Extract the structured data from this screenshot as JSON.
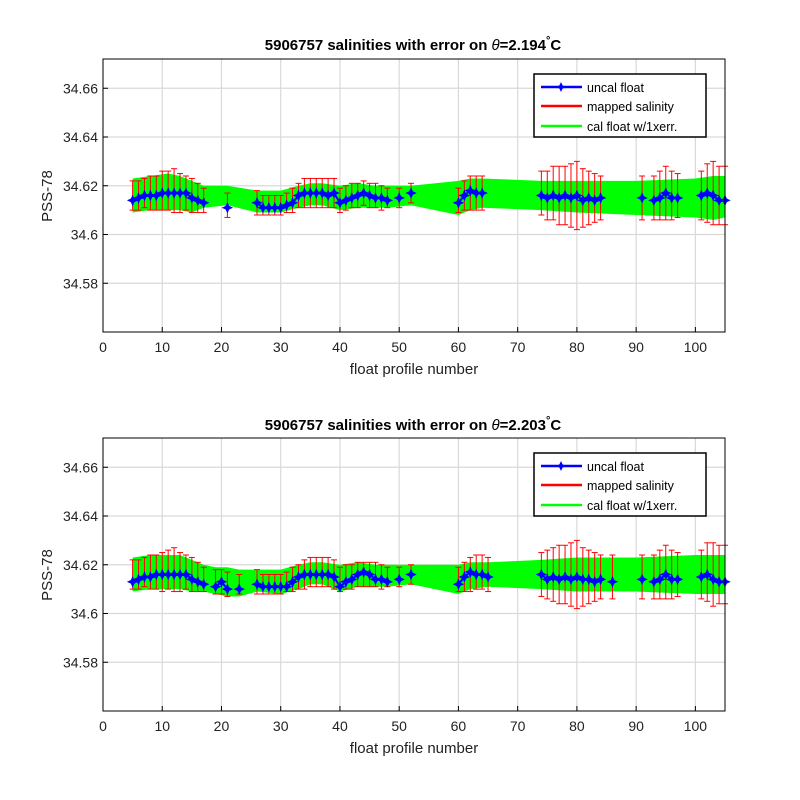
{
  "chart_data": [
    {
      "type": "line",
      "title_prefix": "5906757 salinities with error on ",
      "theta_symbol": "θ",
      "theta_value": "=2.194",
      "degree_mark": "°",
      "unit": "C",
      "xlabel": "float profile number",
      "ylabel": "PSS-78",
      "xlim": [
        0,
        105
      ],
      "ylim": [
        34.56,
        34.672
      ],
      "xticks": [
        0,
        10,
        20,
        30,
        40,
        50,
        60,
        70,
        80,
        90,
        100
      ],
      "yticks": [
        34.58,
        34.6,
        34.62,
        34.64,
        34.66
      ],
      "ytick_labels": [
        "34.58",
        "34.6",
        "34.62",
        "34.64",
        "34.66"
      ],
      "grid": true,
      "legend_position": "top-right",
      "legend": [
        {
          "label": "uncal float",
          "color": "#0000ff"
        },
        {
          "label": "mapped salinity",
          "color": "#ff0000"
        },
        {
          "label": "cal float w/1xerr.",
          "color": "#00ff00"
        }
      ],
      "series": [
        {
          "name": "uncal float",
          "x": [
            5,
            6,
            7,
            8,
            9,
            10,
            11,
            12,
            13,
            14,
            15,
            16,
            17,
            21,
            26,
            27,
            28,
            29,
            30,
            31,
            32,
            33,
            34,
            35,
            36,
            37,
            38,
            39,
            40,
            41,
            42,
            43,
            44,
            45,
            46,
            47,
            48,
            50,
            52,
            60,
            61,
            62,
            63,
            64,
            74,
            75,
            76,
            77,
            78,
            79,
            80,
            81,
            82,
            83,
            84,
            91,
            93,
            94,
            95,
            96,
            97,
            101,
            102,
            103,
            104,
            105
          ],
          "y": [
            34.614,
            34.615,
            34.616,
            34.616,
            34.616,
            34.617,
            34.617,
            34.617,
            34.617,
            34.617,
            34.615,
            34.614,
            34.613,
            34.611,
            34.613,
            34.611,
            34.611,
            34.611,
            34.611,
            34.612,
            34.613,
            34.616,
            34.617,
            34.617,
            34.617,
            34.617,
            34.616,
            34.617,
            34.613,
            34.614,
            34.615,
            34.616,
            34.617,
            34.616,
            34.615,
            34.615,
            34.614,
            34.615,
            34.617,
            34.613,
            34.616,
            34.618,
            34.617,
            34.617,
            34.616,
            34.615,
            34.616,
            34.615,
            34.616,
            34.615,
            34.616,
            34.614,
            34.615,
            34.614,
            34.615,
            34.615,
            34.614,
            34.615,
            34.617,
            34.615,
            34.615,
            34.616,
            34.617,
            34.616,
            34.614,
            34.614
          ]
        }
      ],
      "mapped_salinity": {
        "name": "mapped salinity",
        "x": [
          5,
          6,
          7,
          8,
          9,
          10,
          11,
          12,
          13,
          14,
          15,
          16,
          17,
          21,
          26,
          27,
          28,
          29,
          30,
          31,
          32,
          33,
          34,
          35,
          36,
          37,
          38,
          39,
          40,
          41,
          42,
          43,
          44,
          45,
          46,
          47,
          48,
          50,
          52,
          60,
          61,
          62,
          63,
          64,
          74,
          75,
          76,
          77,
          78,
          79,
          80,
          81,
          82,
          83,
          84,
          91,
          93,
          94,
          95,
          96,
          97,
          101,
          102,
          103,
          104,
          105
        ],
        "y": [
          34.616,
          34.616,
          34.617,
          34.617,
          34.617,
          34.618,
          34.618,
          34.618,
          34.617,
          34.617,
          34.616,
          34.615,
          34.614,
          34.612,
          34.613,
          34.612,
          34.612,
          34.612,
          34.612,
          34.613,
          34.614,
          34.616,
          34.617,
          34.617,
          34.617,
          34.617,
          34.617,
          34.617,
          34.614,
          34.615,
          34.616,
          34.616,
          34.617,
          34.616,
          34.616,
          34.615,
          34.615,
          34.615,
          34.617,
          34.614,
          34.616,
          34.617,
          34.617,
          34.617,
          34.617,
          34.616,
          34.617,
          34.616,
          34.616,
          34.616,
          34.616,
          34.615,
          34.615,
          34.615,
          34.615,
          34.615,
          34.615,
          34.616,
          34.617,
          34.616,
          34.616,
          34.616,
          34.617,
          34.617,
          34.616,
          34.616
        ],
        "error": [
          0.006,
          0.006,
          0.006,
          0.007,
          0.007,
          0.008,
          0.008,
          0.009,
          0.008,
          0.007,
          0.007,
          0.006,
          0.005,
          0.005,
          0.005,
          0.004,
          0.004,
          0.004,
          0.004,
          0.004,
          0.005,
          0.005,
          0.006,
          0.006,
          0.006,
          0.006,
          0.006,
          0.006,
          0.005,
          0.005,
          0.005,
          0.005,
          0.005,
          0.005,
          0.005,
          0.005,
          0.004,
          0.004,
          0.004,
          0.005,
          0.006,
          0.007,
          0.007,
          0.007,
          0.009,
          0.01,
          0.011,
          0.012,
          0.012,
          0.013,
          0.014,
          0.012,
          0.011,
          0.01,
          0.009,
          0.009,
          0.009,
          0.01,
          0.011,
          0.01,
          0.009,
          0.01,
          0.012,
          0.013,
          0.012,
          0.012
        ]
      },
      "cal_float_band": {
        "name": "cal float w/1xerr.",
        "x": [
          5,
          8,
          11,
          13,
          15,
          17,
          21,
          26,
          30,
          33,
          35,
          37,
          40,
          43,
          46,
          48,
          52,
          60,
          62,
          64,
          74,
          80,
          90,
          100,
          103,
          105
        ],
        "lower": [
          34.609,
          34.61,
          34.61,
          34.61,
          34.609,
          34.611,
          34.612,
          34.609,
          34.609,
          34.611,
          34.612,
          34.612,
          34.61,
          34.611,
          34.611,
          34.611,
          34.612,
          34.608,
          34.61,
          34.611,
          34.61,
          34.609,
          34.608,
          34.607,
          34.606,
          34.607
        ],
        "upper": [
          34.623,
          34.624,
          34.625,
          34.624,
          34.622,
          34.62,
          34.62,
          34.618,
          34.618,
          34.62,
          34.621,
          34.621,
          34.62,
          34.621,
          34.62,
          34.62,
          34.62,
          34.622,
          34.623,
          34.623,
          34.622,
          34.622,
          34.622,
          34.623,
          34.624,
          34.624
        ]
      }
    },
    {
      "type": "line",
      "title_prefix": "5906757 salinities with error on ",
      "theta_symbol": "θ",
      "theta_value": "=2.203",
      "degree_mark": "°",
      "unit": "C",
      "xlabel": "float profile number",
      "ylabel": "PSS-78",
      "xlim": [
        0,
        105
      ],
      "ylim": [
        34.56,
        34.672
      ],
      "xticks": [
        0,
        10,
        20,
        30,
        40,
        50,
        60,
        70,
        80,
        90,
        100
      ],
      "yticks": [
        34.58,
        34.6,
        34.62,
        34.64,
        34.66
      ],
      "ytick_labels": [
        "34.58",
        "34.6",
        "34.62",
        "34.64",
        "34.66"
      ],
      "grid": true,
      "legend_position": "top-right",
      "legend": [
        {
          "label": "uncal float",
          "color": "#0000ff"
        },
        {
          "label": "mapped salinity",
          "color": "#ff0000"
        },
        {
          "label": "cal float w/1xerr.",
          "color": "#00ff00"
        }
      ],
      "series": [
        {
          "name": "uncal float",
          "x": [
            5,
            6,
            7,
            8,
            9,
            10,
            11,
            12,
            13,
            14,
            15,
            16,
            17,
            19,
            20,
            21,
            23,
            26,
            27,
            28,
            29,
            30,
            31,
            32,
            33,
            34,
            35,
            36,
            37,
            38,
            39,
            40,
            41,
            42,
            43,
            44,
            45,
            46,
            47,
            48,
            50,
            52,
            60,
            61,
            62,
            63,
            64,
            65,
            74,
            75,
            76,
            77,
            78,
            79,
            80,
            81,
            82,
            83,
            84,
            86,
            91,
            93,
            94,
            95,
            96,
            97,
            101,
            102,
            103,
            104,
            105
          ],
          "y": [
            34.613,
            34.614,
            34.615,
            34.615,
            34.616,
            34.616,
            34.616,
            34.616,
            34.616,
            34.616,
            34.614,
            34.613,
            34.612,
            34.611,
            34.613,
            34.61,
            34.61,
            34.612,
            34.611,
            34.611,
            34.611,
            34.611,
            34.611,
            34.613,
            34.615,
            34.616,
            34.616,
            34.616,
            34.616,
            34.616,
            34.615,
            34.611,
            34.613,
            34.614,
            34.616,
            34.617,
            34.616,
            34.614,
            34.614,
            34.613,
            34.614,
            34.616,
            34.612,
            34.615,
            34.617,
            34.616,
            34.616,
            34.615,
            34.616,
            34.614,
            34.615,
            34.614,
            34.615,
            34.614,
            34.615,
            34.614,
            34.614,
            34.613,
            34.614,
            34.613,
            34.614,
            34.613,
            34.614,
            34.616,
            34.614,
            34.614,
            34.615,
            34.616,
            34.614,
            34.613,
            34.613
          ]
        }
      ],
      "mapped_salinity": {
        "name": "mapped salinity",
        "x": [
          5,
          6,
          7,
          8,
          9,
          10,
          11,
          12,
          13,
          14,
          15,
          16,
          17,
          19,
          20,
          21,
          23,
          26,
          27,
          28,
          29,
          30,
          31,
          32,
          33,
          34,
          35,
          36,
          37,
          38,
          39,
          40,
          41,
          42,
          43,
          44,
          45,
          46,
          47,
          48,
          50,
          52,
          60,
          61,
          62,
          63,
          64,
          65,
          74,
          75,
          76,
          77,
          78,
          79,
          80,
          81,
          82,
          83,
          84,
          86,
          91,
          93,
          94,
          95,
          96,
          97,
          101,
          102,
          103,
          104,
          105
        ],
        "y": [
          34.616,
          34.616,
          34.617,
          34.617,
          34.617,
          34.617,
          34.618,
          34.618,
          34.617,
          34.617,
          34.616,
          34.615,
          34.614,
          34.613,
          34.613,
          34.612,
          34.612,
          34.613,
          34.612,
          34.612,
          34.612,
          34.612,
          34.613,
          34.614,
          34.615,
          34.616,
          34.617,
          34.617,
          34.617,
          34.617,
          34.616,
          34.614,
          34.615,
          34.615,
          34.616,
          34.616,
          34.616,
          34.616,
          34.615,
          34.615,
          34.615,
          34.616,
          34.614,
          34.615,
          34.616,
          34.617,
          34.617,
          34.616,
          34.616,
          34.616,
          34.616,
          34.616,
          34.616,
          34.616,
          34.616,
          34.615,
          34.615,
          34.615,
          34.615,
          34.615,
          34.615,
          34.615,
          34.616,
          34.617,
          34.616,
          34.616,
          34.616,
          34.617,
          34.616,
          34.616,
          34.616
        ],
        "error": [
          0.006,
          0.006,
          0.006,
          0.007,
          0.007,
          0.008,
          0.008,
          0.009,
          0.008,
          0.007,
          0.007,
          0.006,
          0.005,
          0.005,
          0.005,
          0.005,
          0.004,
          0.005,
          0.004,
          0.004,
          0.004,
          0.004,
          0.004,
          0.005,
          0.005,
          0.006,
          0.006,
          0.006,
          0.006,
          0.006,
          0.006,
          0.005,
          0.005,
          0.005,
          0.005,
          0.005,
          0.005,
          0.005,
          0.005,
          0.004,
          0.004,
          0.004,
          0.005,
          0.006,
          0.007,
          0.007,
          0.007,
          0.007,
          0.009,
          0.01,
          0.011,
          0.012,
          0.012,
          0.013,
          0.014,
          0.012,
          0.011,
          0.01,
          0.009,
          0.009,
          0.009,
          0.009,
          0.01,
          0.011,
          0.01,
          0.009,
          0.01,
          0.012,
          0.013,
          0.012,
          0.012
        ]
      },
      "cal_float_band": {
        "name": "cal float w/1xerr.",
        "x": [
          5,
          8,
          11,
          13,
          15,
          17,
          19,
          21,
          23,
          26,
          30,
          33,
          35,
          37,
          40,
          43,
          46,
          48,
          52,
          60,
          62,
          65,
          74,
          80,
          90,
          100,
          103,
          105
        ],
        "lower": [
          34.609,
          34.61,
          34.61,
          34.61,
          34.609,
          34.609,
          34.608,
          34.607,
          34.607,
          34.609,
          34.608,
          34.61,
          34.612,
          34.612,
          34.609,
          34.611,
          34.611,
          34.611,
          34.612,
          34.608,
          34.61,
          34.611,
          34.61,
          34.609,
          34.609,
          34.608,
          34.608,
          34.608
        ],
        "upper": [
          34.623,
          34.624,
          34.624,
          34.624,
          34.622,
          34.62,
          34.619,
          34.619,
          34.618,
          34.618,
          34.618,
          34.62,
          34.621,
          34.621,
          34.62,
          34.621,
          34.62,
          34.62,
          34.62,
          34.62,
          34.621,
          34.621,
          34.622,
          34.623,
          34.623,
          34.624,
          34.624,
          34.624
        ]
      }
    }
  ]
}
